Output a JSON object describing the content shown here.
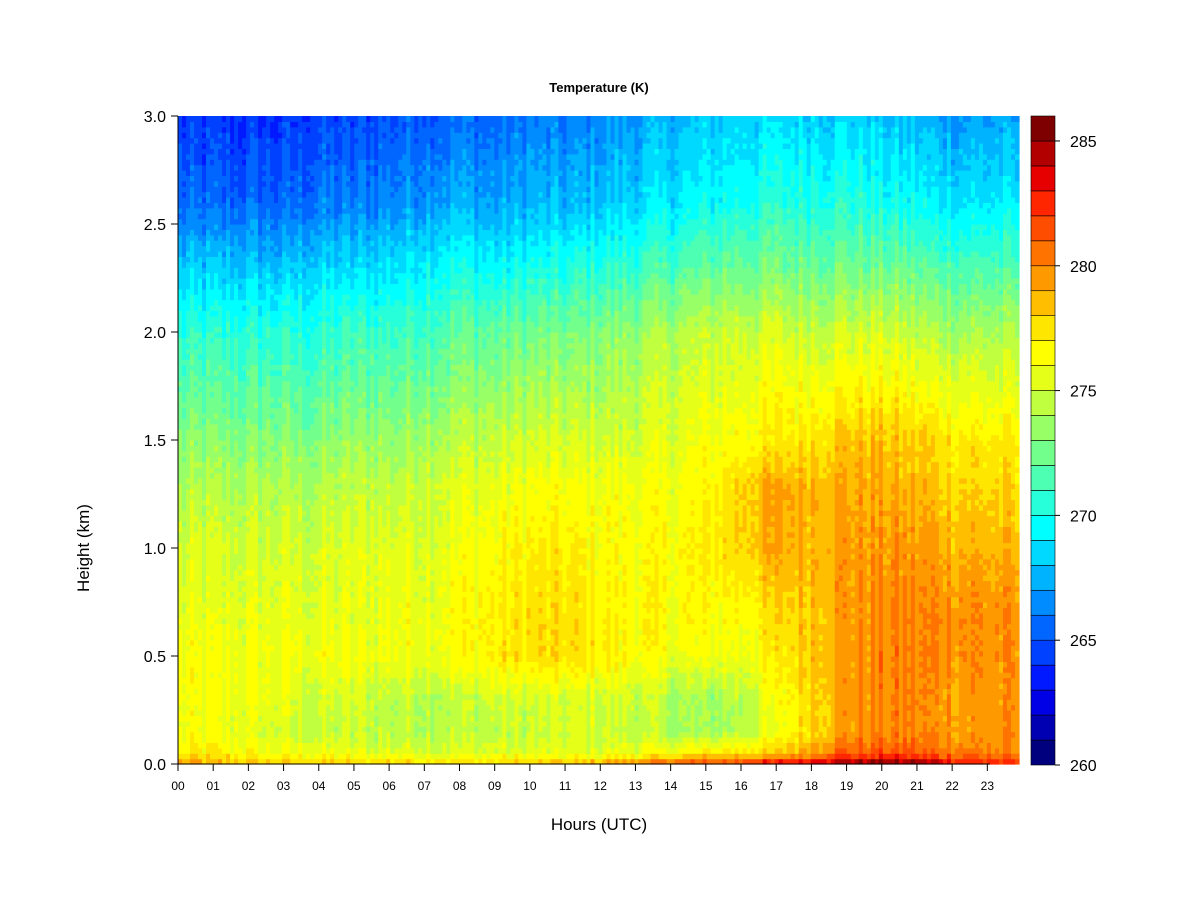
{
  "chart_data": {
    "type": "heatmap",
    "title": "Temperature (K)",
    "xlabel": "Hours (UTC)",
    "ylabel": "Height (km)",
    "x_ticks": [
      "00",
      "01",
      "02",
      "03",
      "04",
      "05",
      "06",
      "07",
      "08",
      "09",
      "10",
      "11",
      "12",
      "13",
      "14",
      "15",
      "16",
      "17",
      "18",
      "19",
      "20",
      "21",
      "22",
      "23"
    ],
    "x_range": [
      0,
      23.9
    ],
    "y_ticks": [
      "0.0",
      "0.5",
      "1.0",
      "1.5",
      "2.0",
      "2.5",
      "3.0"
    ],
    "y_range": [
      0,
      3.0
    ],
    "colorbar": {
      "ticks": [
        "260",
        "265",
        "270",
        "275",
        "280",
        "285"
      ],
      "range": [
        260,
        286
      ],
      "levels": 26,
      "colors": [
        "#00007f",
        "#0000b2",
        "#0000e6",
        "#0019ff",
        "#0040ff",
        "#0066ff",
        "#008cff",
        "#00b3ff",
        "#00d9ff",
        "#00ffff",
        "#26ffd9",
        "#4dffb3",
        "#73ff8c",
        "#99ff66",
        "#bfff40",
        "#e6ff19",
        "#ffff00",
        "#ffe600",
        "#ffbf00",
        "#ff9900",
        "#ff7300",
        "#ff4d00",
        "#ff2600",
        "#e60000",
        "#b20000",
        "#7f0000"
      ]
    },
    "x_hours": [
      0,
      1,
      2,
      3,
      4,
      5,
      6,
      7,
      8,
      9,
      10,
      11,
      12,
      13,
      14,
      15,
      16,
      17,
      18,
      19,
      20,
      21,
      22,
      23.9
    ],
    "z_heights_km": [
      0.0,
      0.05,
      0.15,
      0.3,
      0.5,
      0.7,
      1.0,
      1.3,
      1.5,
      1.7,
      2.0,
      2.3,
      2.6,
      3.0
    ],
    "z_values_K": [
      [
        279.0,
        279.0,
        278.5,
        278.5,
        278.0,
        278.0,
        278.0,
        278.0,
        278.0,
        278.0,
        278.5,
        278.5,
        279.0,
        280.0,
        281.5,
        282.0,
        283.0,
        283.5,
        284.5,
        285.5,
        286.0,
        285.5,
        284.0,
        282.0
      ],
      [
        277.0,
        277.0,
        276.5,
        276.0,
        276.0,
        275.5,
        275.5,
        275.5,
        275.5,
        275.5,
        275.5,
        275.5,
        275.5,
        276.0,
        276.5,
        277.0,
        277.5,
        278.0,
        279.5,
        281.0,
        281.5,
        281.0,
        280.5,
        280.0
      ],
      [
        276.0,
        276.0,
        275.5,
        275.0,
        274.5,
        274.5,
        274.5,
        274.5,
        274.5,
        274.5,
        274.5,
        275.0,
        275.0,
        274.5,
        274.0,
        273.5,
        274.5,
        275.5,
        278.0,
        279.5,
        280.0,
        280.0,
        279.5,
        279.5
      ],
      [
        276.0,
        276.0,
        276.0,
        275.5,
        275.0,
        275.0,
        274.5,
        274.5,
        274.5,
        275.0,
        275.0,
        275.0,
        275.0,
        275.0,
        274.0,
        273.5,
        274.5,
        276.0,
        278.0,
        279.5,
        280.0,
        280.0,
        279.5,
        279.5
      ],
      [
        276.0,
        276.0,
        276.0,
        276.0,
        276.0,
        276.0,
        276.0,
        276.0,
        276.5,
        277.0,
        277.5,
        277.5,
        277.0,
        276.5,
        276.0,
        276.0,
        276.0,
        277.0,
        278.5,
        279.5,
        280.0,
        280.0,
        280.0,
        279.5
      ],
      [
        275.5,
        275.5,
        275.5,
        275.5,
        275.5,
        275.5,
        276.0,
        276.0,
        276.5,
        277.0,
        277.5,
        277.5,
        277.0,
        276.5,
        276.5,
        276.5,
        276.5,
        277.5,
        278.5,
        279.5,
        280.0,
        280.0,
        280.0,
        279.5
      ],
      [
        275.0,
        275.0,
        275.0,
        275.0,
        275.0,
        275.5,
        275.5,
        275.5,
        276.0,
        276.5,
        277.0,
        277.0,
        276.5,
        276.5,
        276.5,
        277.0,
        278.0,
        279.0,
        279.0,
        279.5,
        279.5,
        279.5,
        279.0,
        278.5
      ],
      [
        274.0,
        274.0,
        274.0,
        274.0,
        274.0,
        274.5,
        274.5,
        275.0,
        275.5,
        275.5,
        276.0,
        276.0,
        276.0,
        276.0,
        276.0,
        276.5,
        278.0,
        279.0,
        279.0,
        279.0,
        279.0,
        278.5,
        278.0,
        277.5
      ],
      [
        273.0,
        273.0,
        273.0,
        273.0,
        273.0,
        273.5,
        273.5,
        274.0,
        274.5,
        274.5,
        275.0,
        275.0,
        275.0,
        275.0,
        275.5,
        276.0,
        276.5,
        277.0,
        277.5,
        278.5,
        278.5,
        278.0,
        277.5,
        277.0
      ],
      [
        272.0,
        272.0,
        272.0,
        272.0,
        272.0,
        272.5,
        272.5,
        273.0,
        273.5,
        273.5,
        274.0,
        274.0,
        274.0,
        274.5,
        275.0,
        275.5,
        276.0,
        276.5,
        276.5,
        277.0,
        277.0,
        276.5,
        276.0,
        275.5
      ],
      [
        270.5,
        270.5,
        270.5,
        270.5,
        270.5,
        271.0,
        271.0,
        271.5,
        272.0,
        272.0,
        272.5,
        272.5,
        273.0,
        273.5,
        274.0,
        274.5,
        275.0,
        275.0,
        275.0,
        275.0,
        275.0,
        274.5,
        274.0,
        274.0
      ],
      [
        268.0,
        268.0,
        268.0,
        268.0,
        268.5,
        268.5,
        269.0,
        269.5,
        270.0,
        269.5,
        270.0,
        270.0,
        270.5,
        271.0,
        271.5,
        272.0,
        272.5,
        272.5,
        272.5,
        272.5,
        272.5,
        272.0,
        271.5,
        271.5
      ],
      [
        265.5,
        265.5,
        265.5,
        265.5,
        266.0,
        266.0,
        266.5,
        267.0,
        267.5,
        267.0,
        267.5,
        267.5,
        268.0,
        268.5,
        269.0,
        269.5,
        270.0,
        270.5,
        270.5,
        270.5,
        270.0,
        269.5,
        269.0,
        269.0
      ],
      [
        264.0,
        264.0,
        264.0,
        264.0,
        264.5,
        264.5,
        265.0,
        265.5,
        265.5,
        265.5,
        266.0,
        266.0,
        266.5,
        267.0,
        267.5,
        268.0,
        268.5,
        268.5,
        268.5,
        268.5,
        268.0,
        267.5,
        267.0,
        267.0
      ]
    ]
  }
}
